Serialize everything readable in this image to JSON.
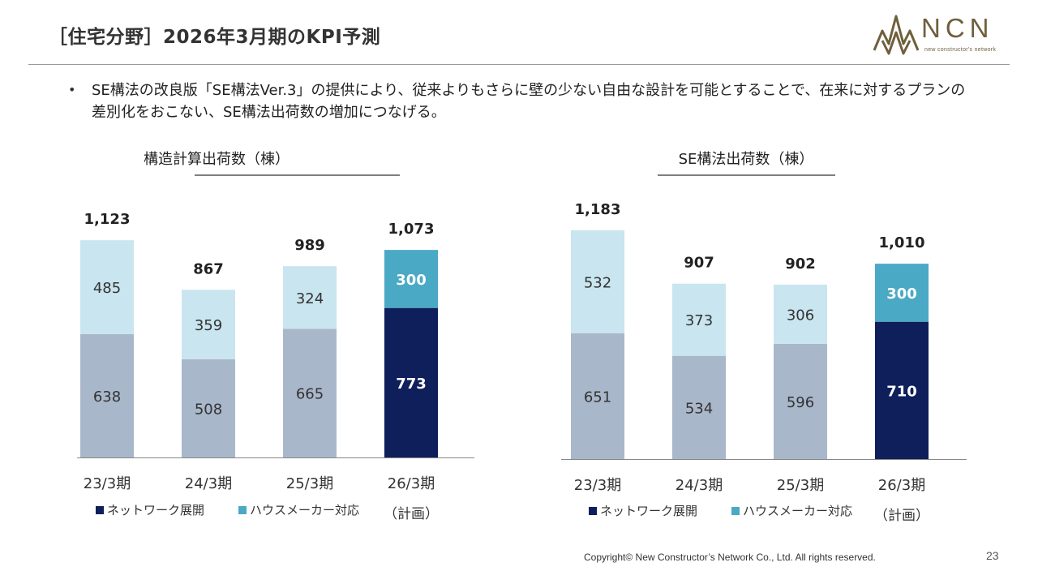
{
  "slide": {
    "title": "［住宅分野］2026年3月期のKPI予測",
    "bullet_marker": "•",
    "bullet_text": "SE構法の改良版「SE構法Ver.3」の提供により、従来よりもさらに壁の少ない自由な設計を可能とすることで、在来に対するプランの差別化をおこない、SE構法出荷数の増加につなげる。",
    "copyright": "Copyright© New Constructor’s Network Co., Ltd. All rights reserved.",
    "page_number": "23"
  },
  "logo": {
    "text": "NCN",
    "subtext": "new constructor's network",
    "color": "#6f5f3c"
  },
  "colors": {
    "network": "#a9b7cb",
    "housemaker": "#c9e5ef",
    "network_plan": "#0e1f5b",
    "housemaker_plan": "#4aa9c4",
    "legend_network": "#0e1f5b",
    "legend_housemaker": "#4aa9c4"
  },
  "chart_data": [
    {
      "type": "bar",
      "stacked": true,
      "title": "構造計算出荷数（棟）",
      "categories": [
        "23/3期",
        "24/3期",
        "25/3期",
        "26/3期"
      ],
      "category_sublabels": [
        "",
        "",
        "",
        "（計画）"
      ],
      "series": [
        {
          "name": "ネットワーク展開",
          "values": [
            638,
            508,
            665,
            773
          ]
        },
        {
          "name": "ハウスメーカー対応",
          "values": [
            485,
            359,
            324,
            300
          ]
        }
      ],
      "totals": [
        "1,123",
        "867",
        "989",
        "1,073"
      ],
      "highlight_index": 3,
      "ylim": [
        0,
        1300
      ],
      "legend_position": "bottom-left"
    },
    {
      "type": "bar",
      "stacked": true,
      "title": "SE構法出荷数（棟）",
      "categories": [
        "23/3期",
        "24/3期",
        "25/3期",
        "26/3期"
      ],
      "category_sublabels": [
        "",
        "",
        "",
        "（計画）"
      ],
      "series": [
        {
          "name": "ネットワーク展開",
          "values": [
            651,
            534,
            596,
            710
          ]
        },
        {
          "name": "ハウスメーカー対応",
          "values": [
            532,
            373,
            306,
            300
          ]
        }
      ],
      "totals": [
        "1,183",
        "907",
        "902",
        "1,010"
      ],
      "highlight_index": 3,
      "ylim": [
        0,
        1300
      ],
      "legend_position": "bottom-left"
    }
  ]
}
